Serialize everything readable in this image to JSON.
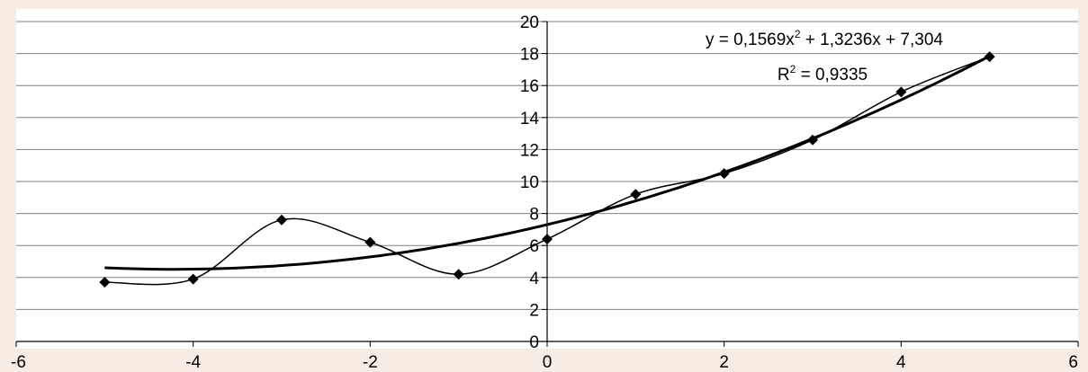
{
  "chart_data": {
    "type": "scatter",
    "title": "",
    "xlabel": "",
    "ylabel": "",
    "xlim": [
      -6,
      6
    ],
    "ylim": [
      0,
      20
    ],
    "x_ticks": [
      -6,
      -4,
      -2,
      0,
      2,
      4,
      6
    ],
    "y_ticks": [
      0,
      2,
      4,
      6,
      8,
      10,
      12,
      14,
      16,
      18,
      20
    ],
    "grid": "horizontal",
    "series": [
      {
        "marker": "diamond",
        "line": "smoothed",
        "points": [
          {
            "x": -5,
            "y": 3.7
          },
          {
            "x": -4,
            "y": 3.9
          },
          {
            "x": -3,
            "y": 7.6
          },
          {
            "x": -2,
            "y": 6.2
          },
          {
            "x": -1,
            "y": 4.2
          },
          {
            "x": 0,
            "y": 6.4
          },
          {
            "x": 1,
            "y": 9.2
          },
          {
            "x": 2,
            "y": 10.5
          },
          {
            "x": 3,
            "y": 12.6
          },
          {
            "x": 4,
            "y": 15.6
          },
          {
            "x": 5,
            "y": 17.8
          }
        ]
      }
    ],
    "trendline": {
      "type": "polynomial",
      "order": 2,
      "coefficients": {
        "a": 0.1569,
        "b": 1.3236,
        "c": 7.304
      },
      "x_range": [
        -5,
        5
      ]
    },
    "annotations": {
      "equation_main": "y = 0,1569x",
      "equation_sup": "2",
      "equation_rest": " + 1,3236x + 7,304",
      "r2_main": "R",
      "r2_sup": "2",
      "r2_rest": " = 0,9335"
    },
    "colors": {
      "background": "#f6ece4",
      "plot_area": "#ffffff",
      "grid": "#808080",
      "series": "#000000",
      "axis": "#000000"
    }
  }
}
